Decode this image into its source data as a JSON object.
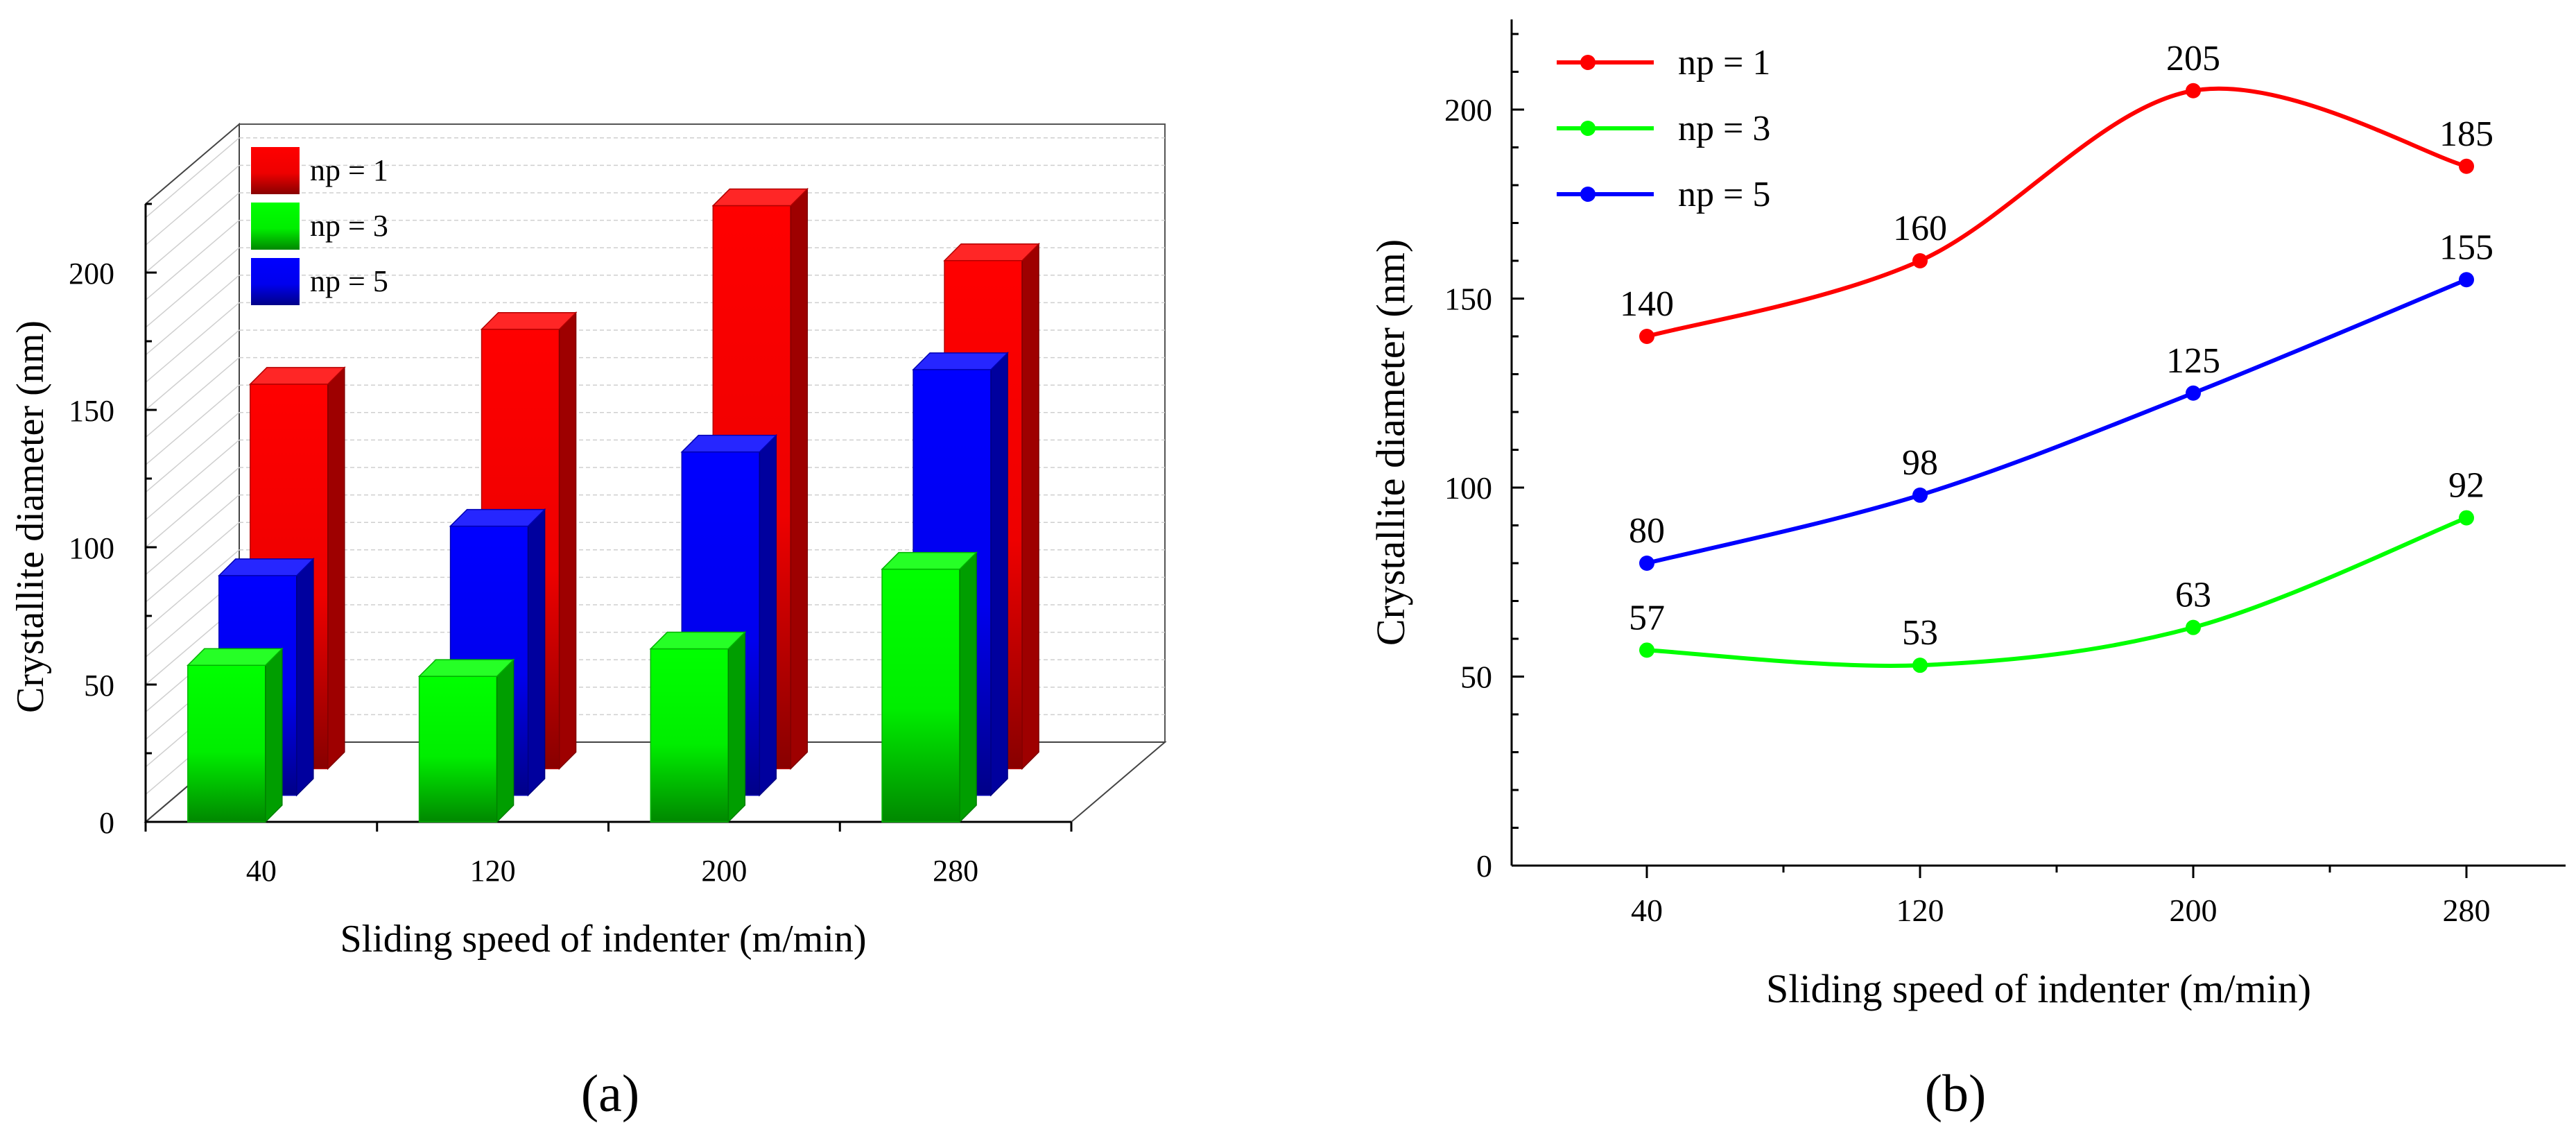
{
  "figure": {
    "panel_a_label": "(a)",
    "panel_b_label": "(b)"
  },
  "chart_data": [
    {
      "panel": "a",
      "type": "bar",
      "style": "3d-grouped-bar",
      "title": "",
      "xlabel": "Sliding speed of indenter (m/min)",
      "ylabel": "Crystallite diameter (nm)",
      "categories": [
        "40",
        "120",
        "200",
        "280"
      ],
      "ylim": [
        0,
        225
      ],
      "yticks": [
        0,
        50,
        100,
        150,
        200
      ],
      "legend_position": "top-left",
      "series": [
        {
          "name": "np = 1",
          "color": "#ff0000",
          "values": [
            140,
            160,
            205,
            185
          ]
        },
        {
          "name": "np = 3",
          "color": "#00ff00",
          "values": [
            57,
            53,
            63,
            92
          ]
        },
        {
          "name": "np = 5",
          "color": "#0000ff",
          "values": [
            80,
            98,
            125,
            155
          ]
        }
      ]
    },
    {
      "panel": "b",
      "type": "line",
      "title": "",
      "xlabel": "Sliding speed of indenter (m/min)",
      "ylabel": "Crystallite diameter (nm)",
      "x": [
        40,
        120,
        200,
        280
      ],
      "xtick_labels": [
        "40",
        "120",
        "200",
        "280"
      ],
      "xlim": [
        0,
        320
      ],
      "ylim": [
        0,
        225
      ],
      "yticks": [
        0,
        50,
        100,
        150,
        200
      ],
      "legend_position": "top-left",
      "series": [
        {
          "name": "np = 1",
          "color": "#ff0000",
          "values": [
            140,
            160,
            205,
            185
          ],
          "labels": [
            "140",
            "160",
            "205",
            "185"
          ]
        },
        {
          "name": "np = 3",
          "color": "#00ff00",
          "values": [
            57,
            53,
            63,
            92
          ],
          "labels": [
            "57",
            "53",
            "63",
            "92"
          ]
        },
        {
          "name": "np = 5",
          "color": "#0000ff",
          "values": [
            80,
            98,
            125,
            155
          ],
          "labels": [
            "80",
            "98",
            "125",
            "155"
          ]
        }
      ]
    }
  ]
}
